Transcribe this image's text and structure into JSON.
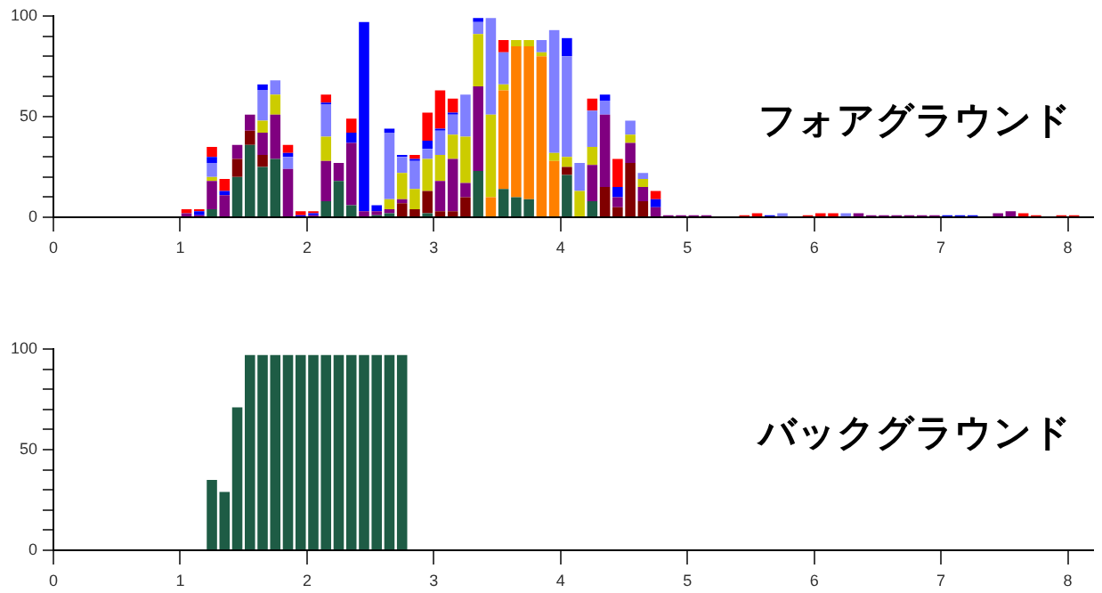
{
  "chart_data": [
    {
      "type": "bar",
      "title": "フォアグラウンド",
      "stacked": true,
      "grid": false,
      "legend": false,
      "xlim": [
        0,
        8.2
      ],
      "xticks": [
        0,
        1,
        2,
        3,
        4,
        5,
        6,
        7,
        8
      ],
      "ylim": [
        0,
        100
      ],
      "yticks": [
        0,
        {
          "value": 10,
          "label": null
        },
        {
          "value": 20,
          "label": null
        },
        {
          "value": 30,
          "label": null
        },
        {
          "value": 40,
          "label": null
        },
        50,
        {
          "value": 60,
          "label": null
        },
        {
          "value": 70,
          "label": null
        },
        {
          "value": 80,
          "label": null
        },
        {
          "value": 90,
          "label": null
        },
        100
      ],
      "x": [
        1.05,
        1.15,
        1.25,
        1.35,
        1.45,
        1.55,
        1.65,
        1.75,
        1.85,
        1.95,
        2.05,
        2.15,
        2.25,
        2.35,
        2.45,
        2.55,
        2.65,
        2.75,
        2.85,
        2.95,
        3.05,
        3.15,
        3.25,
        3.35,
        3.45,
        3.55,
        3.65,
        3.75,
        3.85,
        3.95,
        4.05,
        4.15,
        4.25,
        4.35,
        4.45,
        4.55,
        4.65,
        4.75,
        4.85,
        4.95,
        5.05,
        5.15,
        5.25,
        5.35,
        5.45,
        5.55,
        5.65,
        5.75,
        5.85,
        5.95,
        6.05,
        6.15,
        6.25,
        6.35,
        6.45,
        6.55,
        6.65,
        6.75,
        6.85,
        6.95,
        7.05,
        7.15,
        7.25,
        7.35,
        7.45,
        7.55,
        7.65,
        7.75,
        7.85,
        7.95,
        8.05
      ],
      "series": [
        {
          "color": "#1e5c45",
          "values": [
            null,
            null,
            4,
            null,
            20,
            36,
            25,
            29,
            null,
            null,
            null,
            8,
            18,
            6,
            null,
            1,
            2,
            null,
            null,
            2,
            null,
            null,
            null,
            23,
            null,
            14,
            10,
            9,
            null,
            null,
            21,
            null,
            8,
            null,
            null,
            null,
            null,
            null,
            null,
            null,
            null,
            null,
            null,
            null,
            null,
            null,
            null,
            null,
            null,
            null,
            null,
            null,
            null,
            null,
            null,
            null,
            null,
            null,
            null,
            null,
            null,
            null,
            null,
            null,
            null,
            null,
            null,
            null,
            null,
            null,
            null
          ]
        },
        {
          "color": "#ff8000",
          "values": [
            null,
            null,
            null,
            null,
            null,
            null,
            null,
            null,
            null,
            null,
            null,
            null,
            null,
            null,
            null,
            null,
            null,
            null,
            null,
            null,
            null,
            null,
            null,
            null,
            10,
            49,
            75,
            76,
            80,
            28,
            null,
            null,
            null,
            null,
            null,
            null,
            null,
            null,
            null,
            null,
            null,
            null,
            null,
            null,
            null,
            null,
            null,
            null,
            null,
            null,
            null,
            null,
            null,
            null,
            null,
            null,
            null,
            null,
            null,
            null,
            null,
            null,
            null,
            null,
            null,
            null,
            null,
            null,
            null,
            null,
            null
          ]
        },
        {
          "color": "#800000",
          "values": [
            null,
            null,
            null,
            null,
            9,
            7,
            6,
            null,
            null,
            null,
            null,
            null,
            null,
            null,
            null,
            null,
            null,
            7,
            4,
            11,
            3,
            3,
            10,
            null,
            null,
            null,
            null,
            null,
            null,
            null,
            4,
            null,
            null,
            15,
            5,
            27,
            8,
            null,
            null,
            null,
            null,
            null,
            null,
            null,
            null,
            null,
            null,
            null,
            null,
            null,
            null,
            null,
            null,
            null,
            null,
            null,
            null,
            null,
            null,
            null,
            null,
            null,
            null,
            null,
            null,
            null,
            null,
            null,
            null,
            null,
            null
          ]
        },
        {
          "color": "#800080",
          "values": [
            2,
            1,
            14,
            11,
            7,
            8,
            11,
            22,
            24,
            null,
            1,
            20,
            9,
            31,
            3,
            2,
            2,
            2,
            null,
            null,
            15,
            26,
            7,
            42,
            null,
            null,
            null,
            null,
            null,
            null,
            null,
            null,
            18,
            36,
            5,
            10,
            7,
            5,
            1,
            1,
            1,
            1,
            null,
            null,
            null,
            null,
            null,
            null,
            null,
            null,
            null,
            null,
            null,
            2,
            1,
            1,
            1,
            1,
            1,
            1,
            null,
            null,
            null,
            null,
            2,
            3,
            null,
            null,
            null,
            null,
            null
          ]
        },
        {
          "color": "#cccc00",
          "values": [
            null,
            null,
            2,
            null,
            null,
            null,
            6,
            10,
            null,
            null,
            null,
            12,
            null,
            null,
            null,
            null,
            5,
            13,
            10,
            16,
            13,
            12,
            23,
            26,
            41,
            3,
            3,
            3,
            2,
            4,
            5,
            13,
            9,
            null,
            null,
            4,
            4,
            null,
            null,
            null,
            null,
            null,
            null,
            null,
            null,
            null,
            null,
            null,
            null,
            null,
            null,
            null,
            null,
            null,
            null,
            null,
            null,
            null,
            null,
            null,
            null,
            null,
            null,
            null,
            null,
            null,
            null,
            null,
            null,
            null,
            null
          ]
        },
        {
          "color": "#8080ff",
          "values": [
            null,
            null,
            7,
            null,
            null,
            null,
            15,
            7,
            6,
            null,
            null,
            16,
            null,
            null,
            null,
            null,
            33,
            8,
            14,
            5,
            12,
            10,
            21,
            6,
            48,
            16,
            null,
            null,
            6,
            61,
            50,
            14,
            18,
            7,
            null,
            7,
            3,
            null,
            null,
            null,
            null,
            null,
            null,
            null,
            null,
            null,
            null,
            2,
            null,
            null,
            null,
            null,
            2,
            null,
            null,
            null,
            null,
            null,
            null,
            null,
            null,
            null,
            null,
            null,
            null,
            null,
            null,
            null,
            null,
            null,
            null
          ]
        },
        {
          "color": "#0000ff",
          "values": [
            null,
            2,
            3,
            2,
            null,
            null,
            3,
            null,
            2,
            1,
            1,
            1,
            null,
            5,
            94,
            3,
            2,
            1,
            1,
            4,
            1,
            1,
            null,
            2,
            null,
            null,
            null,
            null,
            null,
            null,
            9,
            null,
            null,
            3,
            5,
            null,
            null,
            4,
            null,
            null,
            null,
            null,
            null,
            null,
            null,
            null,
            1,
            null,
            null,
            null,
            null,
            null,
            null,
            null,
            null,
            null,
            null,
            null,
            null,
            null,
            1,
            1,
            1,
            null,
            null,
            null,
            null,
            null,
            null,
            null,
            null
          ]
        },
        {
          "color": "#ff0000",
          "values": [
            2,
            1,
            5,
            6,
            null,
            null,
            null,
            null,
            4,
            2,
            1,
            4,
            null,
            7,
            null,
            null,
            null,
            null,
            2,
            14,
            19,
            7,
            null,
            null,
            null,
            6,
            null,
            null,
            null,
            null,
            null,
            null,
            6,
            null,
            14,
            null,
            null,
            4,
            null,
            null,
            null,
            null,
            null,
            null,
            1,
            2,
            null,
            null,
            null,
            1,
            2,
            2,
            null,
            null,
            null,
            null,
            null,
            null,
            null,
            null,
            null,
            null,
            null,
            null,
            null,
            null,
            2,
            1,
            null,
            1,
            1
          ]
        }
      ]
    },
    {
      "type": "bar",
      "title": "バックグラウンド",
      "stacked": true,
      "grid": false,
      "legend": false,
      "xlim": [
        0,
        8.2
      ],
      "xticks": [
        0,
        1,
        2,
        3,
        4,
        5,
        6,
        7,
        8
      ],
      "ylim": [
        0,
        100
      ],
      "yticks": [
        0,
        {
          "value": 10,
          "label": null
        },
        {
          "value": 20,
          "label": null
        },
        {
          "value": 30,
          "label": null
        },
        {
          "value": 40,
          "label": null
        },
        50,
        {
          "value": 60,
          "label": null
        },
        {
          "value": 70,
          "label": null
        },
        {
          "value": 80,
          "label": null
        },
        {
          "value": 90,
          "label": null
        },
        100
      ],
      "x": [
        1.25,
        1.35,
        1.45,
        1.55,
        1.65,
        1.75,
        1.85,
        1.95,
        2.05,
        2.15,
        2.25,
        2.35,
        2.45,
        2.55,
        2.65,
        2.75
      ],
      "series": [
        {
          "color": "#1e5c45",
          "values": [
            35,
            29,
            71,
            97,
            97,
            97,
            97,
            97,
            97,
            97,
            97,
            97,
            97,
            97,
            97,
            97
          ]
        }
      ]
    }
  ]
}
